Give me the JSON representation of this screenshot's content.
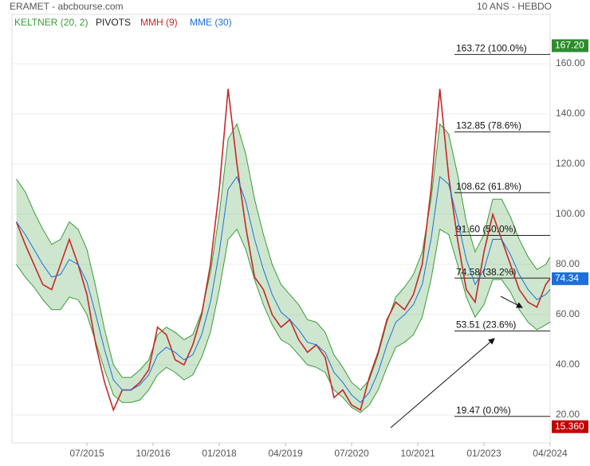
{
  "chart_data": {
    "type": "line",
    "title": "ERAMET - abcbourse.com",
    "subtitle": "10 ANS - HEBDO",
    "x": [
      "03/2014",
      "05/2014",
      "07/2014",
      "09/2014",
      "11/2014",
      "01/2015",
      "03/2015",
      "05/2015",
      "07/2015",
      "09/2015",
      "11/2015",
      "01/2016",
      "03/2016",
      "05/2016",
      "07/2016",
      "09/2016",
      "11/2016",
      "01/2017",
      "03/2017",
      "05/2017",
      "07/2017",
      "09/2017",
      "11/2017",
      "01/2018",
      "03/2018",
      "05/2018",
      "07/2018",
      "09/2018",
      "11/2018",
      "01/2019",
      "03/2019",
      "05/2019",
      "07/2019",
      "09/2019",
      "11/2019",
      "01/2020",
      "03/2020",
      "05/2020",
      "07/2020",
      "09/2020",
      "11/2020",
      "01/2021",
      "03/2021",
      "05/2021",
      "07/2021",
      "09/2021",
      "11/2021",
      "01/2022",
      "03/2022",
      "05/2022",
      "07/2022",
      "09/2022",
      "11/2022",
      "01/2023",
      "03/2023",
      "05/2023",
      "07/2023",
      "09/2023",
      "11/2023",
      "01/2024",
      "03/2024",
      "04/2024"
    ],
    "xlim": [
      "02/2014",
      "04/2024"
    ],
    "xticks": [
      "07/2015",
      "10/2016",
      "01/2018",
      "04/2019",
      "07/2020",
      "10/2021",
      "01/2023",
      "04/2024"
    ],
    "ylim": [
      8.9,
      179.7
    ],
    "yticks": [
      {
        "value": 20,
        "label": "20.00"
      },
      {
        "value": 40,
        "label": "40.00"
      },
      {
        "value": 60,
        "label": "60.00"
      },
      {
        "value": 80,
        "label": "80.00"
      },
      {
        "value": 100,
        "label": "100.00"
      },
      {
        "value": 120,
        "label": "120.00"
      },
      {
        "value": 140,
        "label": "140.00"
      },
      {
        "value": 160,
        "label": "160.00"
      }
    ],
    "grid": true,
    "series": [
      {
        "name": "KELTNER (20, 2)",
        "color": "#3a9a3a",
        "upper": [
          114,
          109,
          101,
          94,
          88,
          90,
          97,
          94,
          86,
          71,
          54,
          40,
          35,
          35,
          38,
          42,
          52,
          55,
          53,
          50,
          52,
          61,
          77,
          100,
          130,
          136,
          124,
          106,
          92,
          80,
          72,
          68,
          64,
          58,
          57,
          53,
          44,
          39,
          33,
          30,
          34,
          44,
          57,
          67,
          71,
          76,
          85,
          106,
          136,
          132,
          116,
          97,
          85,
          92,
          106,
          106,
          99,
          90,
          83,
          78,
          80,
          83
        ],
        "lower": [
          80,
          75,
          71,
          66,
          62,
          62,
          67,
          66,
          60,
          49,
          38,
          28,
          25,
          25,
          26,
          30,
          36,
          39,
          37,
          34,
          36,
          43,
          53,
          70,
          90,
          94,
          86,
          74,
          64,
          56,
          50,
          48,
          44,
          40,
          39,
          37,
          30,
          27,
          23,
          21,
          24,
          30,
          39,
          47,
          49,
          52,
          59,
          74,
          94,
          92,
          80,
          67,
          59,
          64,
          74,
          74,
          69,
          62,
          57,
          54,
          56,
          57
        ]
      },
      {
        "name": "PIVOTS",
        "color": "#222222",
        "levels": [
          {
            "value": 163.72,
            "label": "163.72  (100.0%)"
          },
          {
            "value": 132.85,
            "label": "132.85  (78.6%)"
          },
          {
            "value": 108.62,
            "label": "108.62  (61.8%)"
          },
          {
            "value": 91.6,
            "label": "91.60  (50.0%)"
          },
          {
            "value": 74.58,
            "label": "74.58  (38.2%)"
          },
          {
            "value": 53.51,
            "label": "53.51  (23.6%)"
          },
          {
            "value": 19.47,
            "label": "19.47  (0.0%)"
          }
        ]
      },
      {
        "name": "MMH (9)",
        "color": "#c62828",
        "values": [
          97,
          88,
          80,
          72,
          70,
          80,
          90,
          80,
          68,
          48,
          33,
          22,
          30,
          30,
          33,
          38,
          55,
          52,
          42,
          40,
          48,
          60,
          80,
          110,
          150,
          120,
          95,
          75,
          70,
          60,
          55,
          58,
          50,
          45,
          48,
          43,
          27,
          30,
          24,
          22,
          35,
          45,
          58,
          65,
          62,
          68,
          80,
          110,
          150,
          115,
          90,
          70,
          65,
          85,
          100,
          90,
          80,
          70,
          65,
          63,
          72,
          74.34
        ]
      },
      {
        "name": "MME (30)",
        "color": "#1e6fd9",
        "values": [
          97,
          92,
          86,
          80,
          75,
          76,
          82,
          80,
          73,
          60,
          46,
          34,
          30,
          30,
          32,
          36,
          44,
          47,
          45,
          42,
          44,
          52,
          65,
          85,
          110,
          115,
          105,
          90,
          78,
          68,
          61,
          58,
          54,
          49,
          48,
          45,
          37,
          33,
          28,
          25,
          29,
          37,
          48,
          57,
          60,
          64,
          72,
          90,
          115,
          112,
          98,
          82,
          72,
          78,
          90,
          90,
          84,
          76,
          70,
          66,
          68,
          70
        ]
      }
    ],
    "price_tags": [
      {
        "value": 167.2,
        "label": "167.20",
        "color": "#2e8b2e"
      },
      {
        "value": 74.34,
        "label": "74.34",
        "color": "#1e6fd9"
      },
      {
        "value": 15.36,
        "label": "15.360",
        "color": "#c00000"
      }
    ]
  }
}
